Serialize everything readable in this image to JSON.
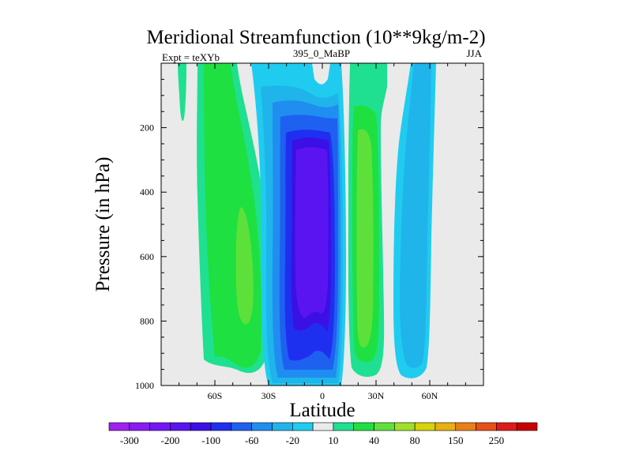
{
  "chart_data": {
    "type": "contour",
    "title": "Meridional Streamfunction (10**9kg/m-2)",
    "left_string": "Expt = teXYb",
    "center_string": "395_0_MaBP",
    "right_string": "JJA",
    "xlabel": "Latitude",
    "ylabel": "Pressure (in hPa)",
    "x_ticks": [
      {
        "value": -60,
        "label": "60S"
      },
      {
        "value": -30,
        "label": "30S"
      },
      {
        "value": 0,
        "label": "0"
      },
      {
        "value": 30,
        "label": "30N"
      },
      {
        "value": 60,
        "label": "60N"
      }
    ],
    "y_ticks": [
      {
        "value": 200,
        "label": "200"
      },
      {
        "value": 400,
        "label": "400"
      },
      {
        "value": 600,
        "label": "600"
      },
      {
        "value": 800,
        "label": "800"
      },
      {
        "value": 1000,
        "label": "1000"
      }
    ],
    "xlim": [
      -90,
      90
    ],
    "ylim": [
      1000,
      0
    ],
    "colorbar": {
      "levels": [
        -300,
        -250,
        -200,
        -150,
        -100,
        -80,
        -60,
        -40,
        -20,
        -10,
        10,
        20,
        40,
        60,
        80,
        100,
        150,
        200,
        250,
        300
      ],
      "labels": [
        "-300",
        "-200",
        "-100",
        "-60",
        "-20",
        "10",
        "40",
        "80",
        "150",
        "250"
      ],
      "colors": [
        "#a020f0",
        "#8a1bf5",
        "#7417f7",
        "#5a14f2",
        "#3a10e6",
        "#1f2ff0",
        "#1e60f0",
        "#1f8ef0",
        "#1fb4ea",
        "#1fccf0",
        "#eaeaea",
        "#1fe090",
        "#1ee040",
        "#5ee03a",
        "#9ee02a",
        "#d6d20c",
        "#e8b010",
        "#e88018",
        "#e85018",
        "#e01a1a",
        "#c80000"
      ]
    },
    "fill": {
      "background": "#eaeaea",
      "contour_colors": {
        "positive_10_20": "#1fe090",
        "positive_20_40": "#1ee040",
        "positive_40_60": "#5ee03a",
        "negative_10_20": "#1fccf0",
        "negative_20_40": "#1fb4ea",
        "negative_40_60": "#1f8ef0",
        "negative_60_80": "#1e60f0",
        "negative_80_100": "#1f2ff0",
        "negative_100_150": "#3a10e6",
        "negative_150_200": "#5a14f2"
      }
    }
  }
}
